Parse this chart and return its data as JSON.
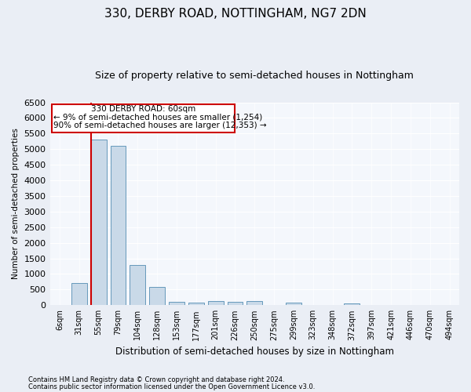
{
  "title": "330, DERBY ROAD, NOTTINGHAM, NG7 2DN",
  "subtitle": "Size of property relative to semi-detached houses in Nottingham",
  "xlabel": "Distribution of semi-detached houses by size in Nottingham",
  "ylabel": "Number of semi-detached properties",
  "categories": [
    "6sqm",
    "31sqm",
    "55sqm",
    "79sqm",
    "104sqm",
    "128sqm",
    "153sqm",
    "177sqm",
    "201sqm",
    "226sqm",
    "250sqm",
    "275sqm",
    "299sqm",
    "323sqm",
    "348sqm",
    "372sqm",
    "397sqm",
    "421sqm",
    "446sqm",
    "470sqm",
    "494sqm"
  ],
  "values": [
    10,
    700,
    5300,
    5100,
    1300,
    580,
    100,
    80,
    130,
    100,
    130,
    0,
    80,
    0,
    0,
    60,
    0,
    0,
    0,
    0,
    0
  ],
  "bar_color": "#c9d9e8",
  "bar_edge_color": "#6699bb",
  "vline_color": "#cc0000",
  "vline_x": 1.6,
  "ylim": [
    0,
    6500
  ],
  "yticks": [
    0,
    500,
    1000,
    1500,
    2000,
    2500,
    3000,
    3500,
    4000,
    4500,
    5000,
    5500,
    6000,
    6500
  ],
  "annotation_title": "330 DERBY ROAD: 60sqm",
  "annotation_line1": "← 9% of semi-detached houses are smaller (1,254)",
  "annotation_line2": "90% of semi-detached houses are larger (12,353) →",
  "footnote1": "Contains HM Land Registry data © Crown copyright and database right 2024.",
  "footnote2": "Contains public sector information licensed under the Open Government Licence v3.0.",
  "bg_color": "#eaeef5",
  "plot_bg_color": "#f4f7fc",
  "grid_color": "#ffffff",
  "title_fontsize": 11,
  "subtitle_fontsize": 9
}
